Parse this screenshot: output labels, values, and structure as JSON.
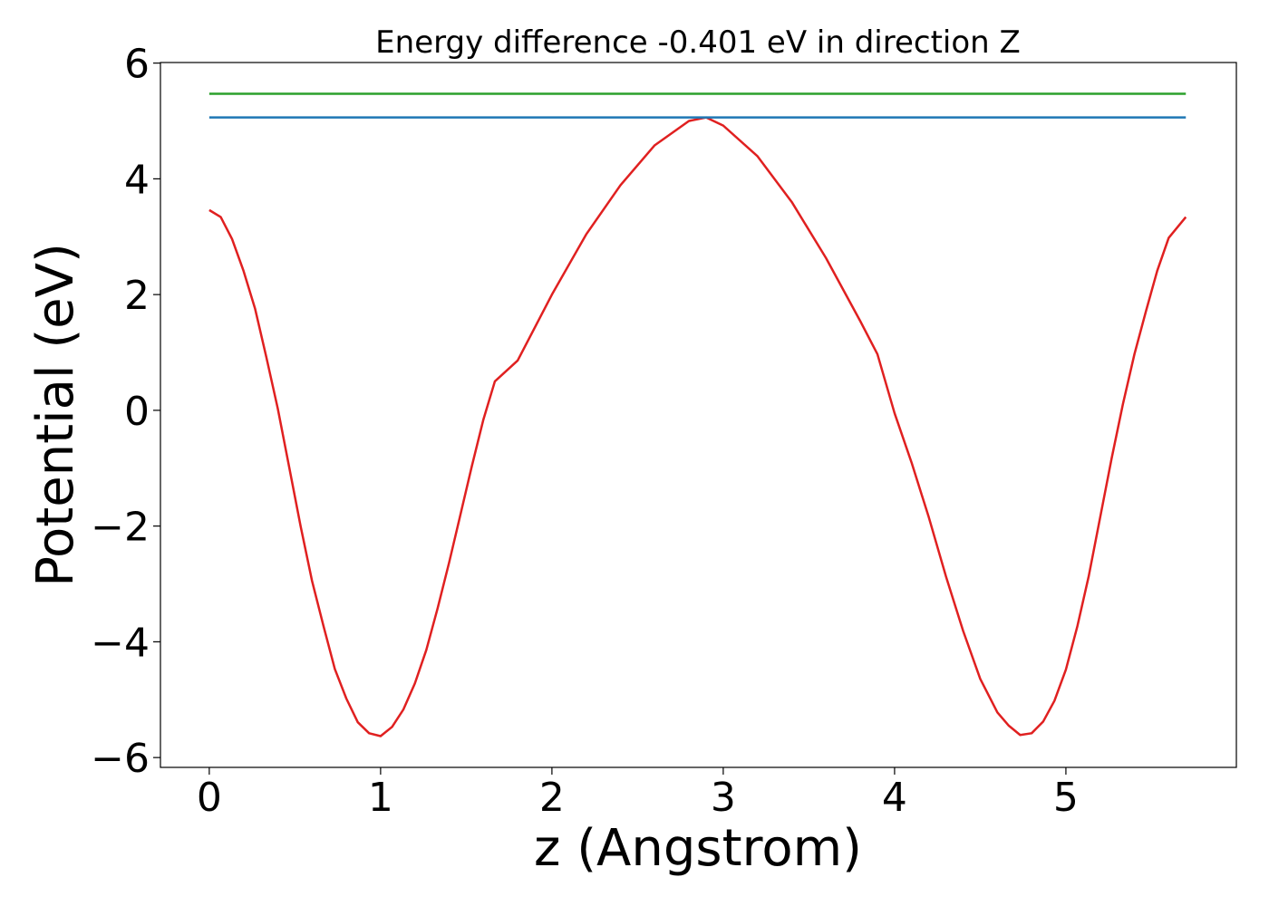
{
  "chart_data": {
    "type": "line",
    "title": "Energy difference -0.401 eV in direction Z",
    "xlabel": "z (Angstrom)",
    "ylabel": "Potential (eV)",
    "xlim": [
      -0.285,
      5.995
    ],
    "ylim": [
      -6.17,
      6.01
    ],
    "xticks": [
      0,
      1,
      2,
      3,
      4,
      5
    ],
    "yticks": [
      {
        "value": -6,
        "label": "−6"
      },
      {
        "value": -4,
        "label": "−4"
      },
      {
        "value": -2,
        "label": "−2"
      },
      0,
      2,
      4,
      6
    ],
    "grid": false,
    "series": [
      {
        "color": "#e02020",
        "x": [
          0,
          0.067,
          0.133,
          0.2,
          0.267,
          0.333,
          0.4,
          0.467,
          0.533,
          0.6,
          0.667,
          0.733,
          0.8,
          0.867,
          0.933,
          1.0,
          1.067,
          1.133,
          1.2,
          1.267,
          1.333,
          1.4,
          1.467,
          1.533,
          1.6,
          1.667,
          1.8,
          2.0,
          2.2,
          2.4,
          2.6,
          2.8,
          2.9,
          3.0,
          3.2,
          3.4,
          3.6,
          3.8,
          3.9,
          4.0,
          4.1,
          4.2,
          4.3,
          4.4,
          4.5,
          4.6,
          4.667,
          4.733,
          4.8,
          4.867,
          4.933,
          5.0,
          5.067,
          5.133,
          5.2,
          5.267,
          5.333,
          5.4,
          5.467,
          5.533,
          5.6,
          5.7
        ],
        "values": [
          3.46,
          3.34,
          2.96,
          2.41,
          1.76,
          0.92,
          0.03,
          -0.99,
          -2.0,
          -2.95,
          -3.73,
          -4.47,
          -4.98,
          -5.39,
          -5.58,
          -5.63,
          -5.47,
          -5.17,
          -4.72,
          -4.14,
          -3.42,
          -2.63,
          -1.79,
          -0.96,
          -0.16,
          0.5,
          0.86,
          2.0,
          3.04,
          3.89,
          4.58,
          5.0,
          5.06,
          4.92,
          4.39,
          3.6,
          2.63,
          1.54,
          0.97,
          -0.05,
          -0.91,
          -1.85,
          -2.87,
          -3.81,
          -4.64,
          -5.22,
          -5.45,
          -5.61,
          -5.58,
          -5.38,
          -5.02,
          -4.48,
          -3.73,
          -2.87,
          -1.85,
          -0.83,
          0.11,
          0.97,
          1.71,
          2.41,
          2.98,
          3.34
        ]
      },
      {
        "color": "#1f77b4",
        "x": [
          0,
          5.7
        ],
        "values": [
          5.06,
          5.06
        ]
      },
      {
        "color": "#2ca02c",
        "x": [
          0,
          5.7
        ],
        "values": [
          5.47,
          5.47
        ]
      }
    ]
  }
}
